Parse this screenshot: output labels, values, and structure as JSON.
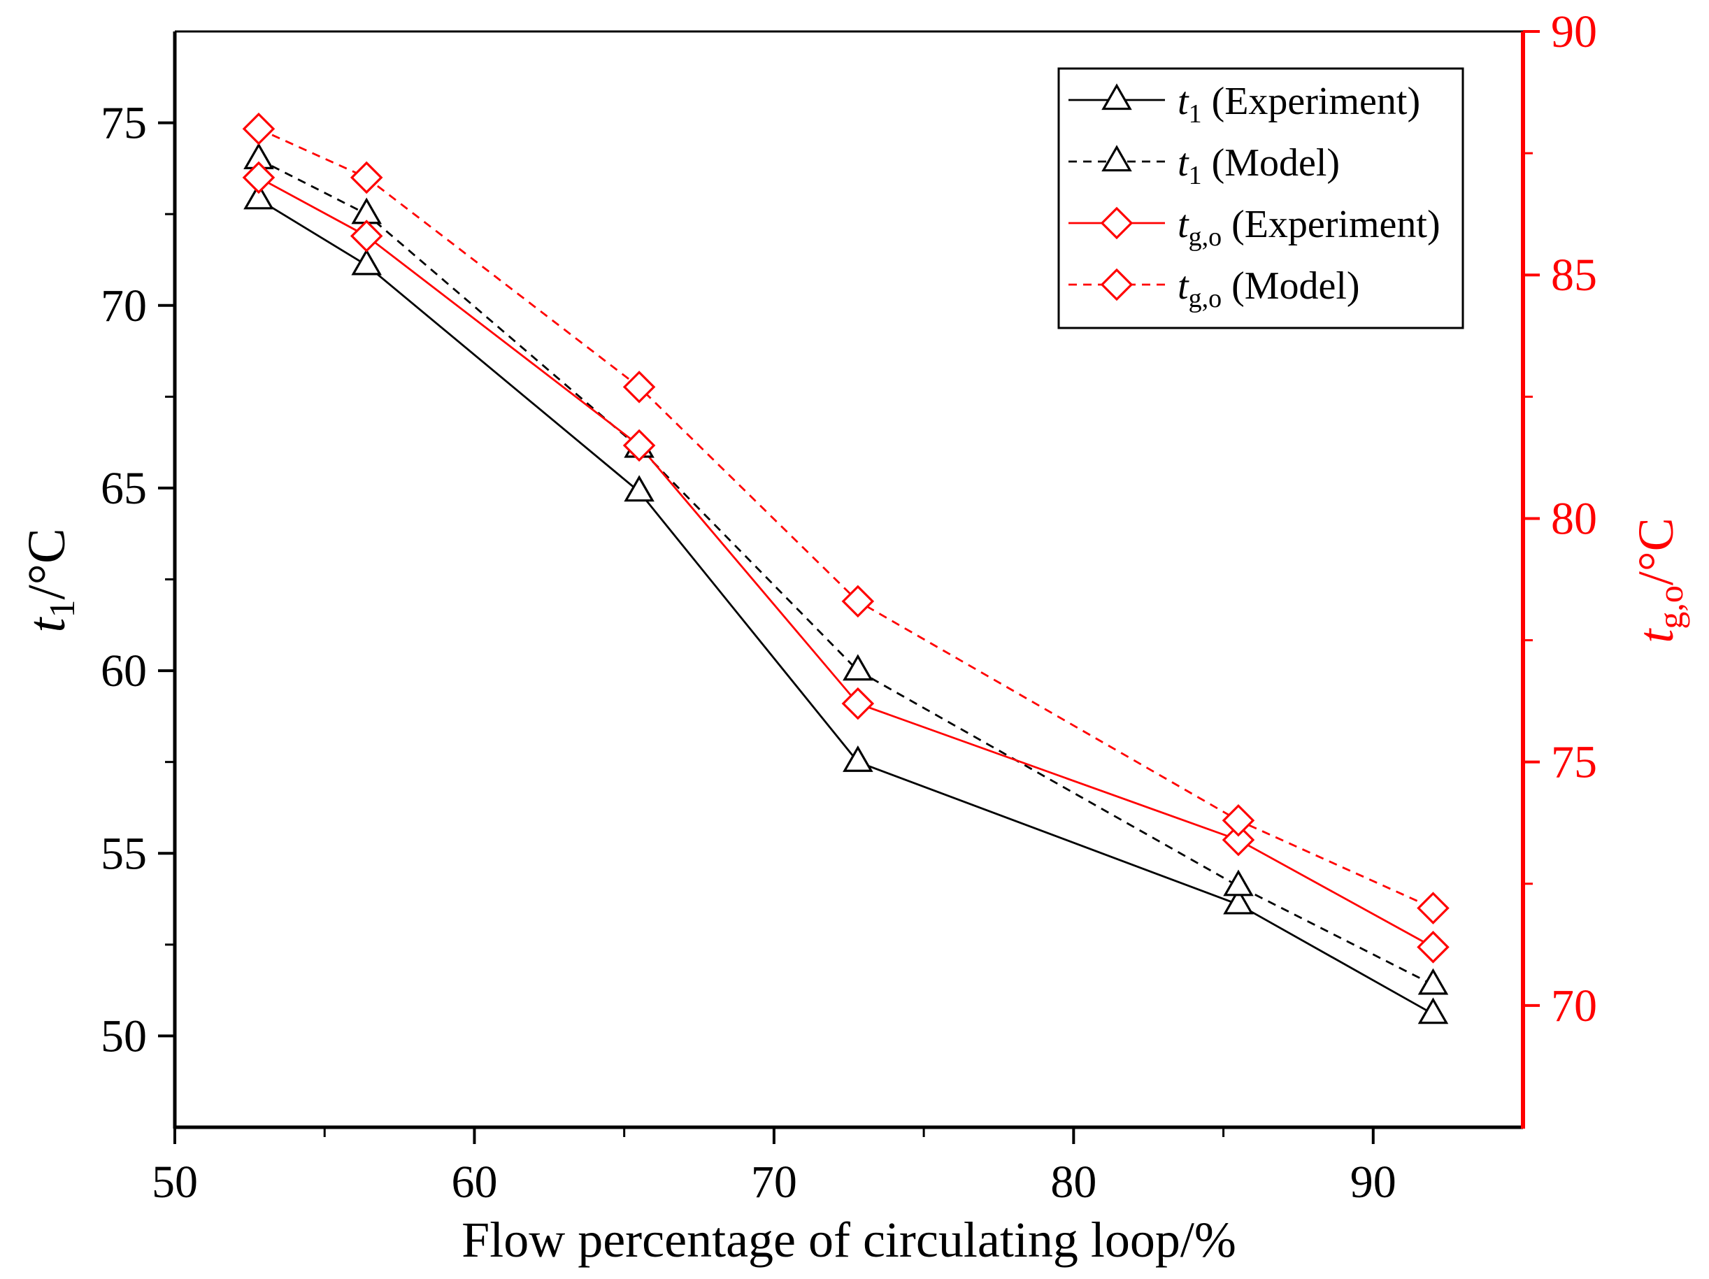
{
  "chart_data": {
    "type": "line",
    "xlabel": "Flow percentage of circulating loop/%",
    "xlim": [
      50,
      95
    ],
    "x_ticks": [
      50,
      60,
      70,
      80,
      90
    ],
    "x_tick_labels": [
      "50",
      "60",
      "70",
      "80",
      "90"
    ],
    "left_axis": {
      "label_main": "t",
      "label_sub": "1",
      "label_unit": "/°C",
      "ylim": [
        47.5,
        77.5
      ],
      "ticks": [
        50,
        55,
        60,
        65,
        70,
        75
      ],
      "tick_labels": [
        "50",
        "55",
        "60",
        "65",
        "70",
        "75"
      ],
      "color": "#000000"
    },
    "right_axis": {
      "label_main": "t",
      "label_sub": "g,o",
      "label_unit": "/°C",
      "ylim": [
        67.5,
        90
      ],
      "ticks": [
        70,
        75,
        80,
        85,
        90
      ],
      "tick_labels": [
        "70",
        "75",
        "80",
        "85",
        "90"
      ],
      "color": "#ff0000"
    },
    "x": [
      52.8,
      56.4,
      65.5,
      72.8,
      85.5,
      92.0
    ],
    "series": [
      {
        "name": "t1 (Experiment)",
        "legend_main": "t",
        "legend_sub": "1",
        "legend_rest": " (Experiment)",
        "axis": "left",
        "color": "#000000",
        "dash": "solid",
        "marker": "triangle",
        "values": [
          72.9,
          71.1,
          64.9,
          57.5,
          53.6,
          50.6
        ]
      },
      {
        "name": "t1 (Model)",
        "legend_main": "t",
        "legend_sub": "1",
        "legend_rest": " (Model)",
        "axis": "left",
        "color": "#000000",
        "dash": "dashed",
        "marker": "triangle",
        "values": [
          74.0,
          72.5,
          66.1,
          60.0,
          54.1,
          51.4
        ]
      },
      {
        "name": "tg,o (Experiment)",
        "legend_main": "t",
        "legend_sub": "g,o",
        "legend_rest": " (Experiment)",
        "axis": "right",
        "color": "#ff0000",
        "dash": "solid",
        "marker": "diamond",
        "values": [
          87.0,
          85.8,
          81.5,
          76.2,
          73.4,
          71.2
        ]
      },
      {
        "name": "tg,o (Model)",
        "legend_main": "t",
        "legend_sub": "g,o",
        "legend_rest": " (Model)",
        "axis": "right",
        "color": "#ff0000",
        "dash": "dashed",
        "marker": "diamond",
        "values": [
          88.0,
          87.0,
          82.7,
          78.3,
          73.8,
          72.0
        ]
      }
    ],
    "legend_position": "top-right"
  }
}
